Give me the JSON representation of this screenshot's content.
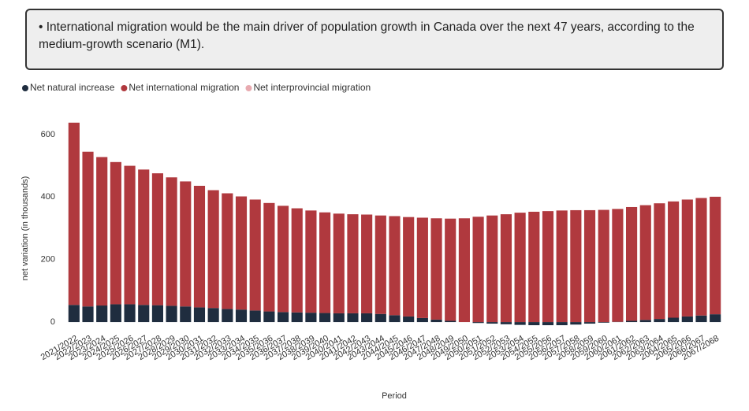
{
  "callout": "• International migration would be the main driver of population growth in Canada over the next 47 years, according to the medium-growth scenario (M1).",
  "chart_data": {
    "type": "stacked_bar",
    "y_label": "net variation (in thousands)",
    "x_label": "Period",
    "categories": [
      "2021/2022",
      "2022/2023",
      "2023/2024",
      "2024/2025",
      "2025/2026",
      "2026/2027",
      "2027/2028",
      "2028/2029",
      "2029/2030",
      "2030/2031",
      "2031/2032",
      "2032/2033",
      "2033/2034",
      "2034/2035",
      "2035/2036",
      "2036/2037",
      "2037/2038",
      "2038/2039",
      "2039/2040",
      "2040/2041",
      "2041/2042",
      "2042/2043",
      "2043/2044",
      "2044/2045",
      "2045/2046",
      "2046/2047",
      "2047/2048",
      "2048/2049",
      "2049/2050",
      "2050/2051",
      "2051/2052",
      "2052/2053",
      "2053/2054",
      "2054/2055",
      "2055/2056",
      "2056/2057",
      "2057/2058",
      "2058/2059",
      "2059/2060",
      "2060/2061",
      "2061/2062",
      "2062/2063",
      "2063/2064",
      "2064/2065",
      "2065/2066",
      "2066/2067",
      "2067/2068"
    ],
    "series": [
      {
        "name": "Net natural increase",
        "color": "#1f2d3f",
        "values": [
          55,
          50,
          53,
          57,
          57,
          55,
          54,
          52,
          50,
          47,
          45,
          42,
          40,
          37,
          34,
          32,
          31,
          30,
          29,
          28,
          28,
          28,
          26,
          22,
          18,
          13,
          8,
          4,
          0,
          -3,
          -5,
          -7,
          -9,
          -10,
          -10,
          -10,
          -8,
          -5,
          -2,
          1,
          4,
          7,
          10,
          14,
          18,
          21,
          25
        ]
      },
      {
        "name": "Net international migration",
        "color": "#b0393e",
        "values": [
          583,
          495,
          475,
          455,
          443,
          433,
          422,
          411,
          400,
          389,
          377,
          370,
          362,
          355,
          347,
          340,
          333,
          327,
          322,
          319,
          317,
          316,
          315,
          317,
          318,
          321,
          324,
          327,
          332,
          337,
          341,
          345,
          350,
          353,
          355,
          357,
          358,
          358,
          359,
          361,
          364,
          367,
          370,
          372,
          374,
          376,
          376
        ]
      },
      {
        "name": "Net interprovincial migration",
        "color": "#e8aab0",
        "values": [
          0,
          0,
          0,
          0,
          0,
          0,
          0,
          0,
          0,
          0,
          0,
          0,
          0,
          0,
          0,
          0,
          0,
          0,
          0,
          0,
          0,
          0,
          0,
          0,
          0,
          0,
          0,
          0,
          0,
          0,
          0,
          0,
          0,
          0,
          0,
          0,
          0,
          0,
          0,
          0,
          0,
          0,
          0,
          0,
          0,
          0,
          0
        ]
      }
    ],
    "ylim": [
      -20,
      640
    ],
    "yticks": [
      0,
      200,
      400,
      600
    ],
    "grid": false,
    "legend": "top-left"
  }
}
